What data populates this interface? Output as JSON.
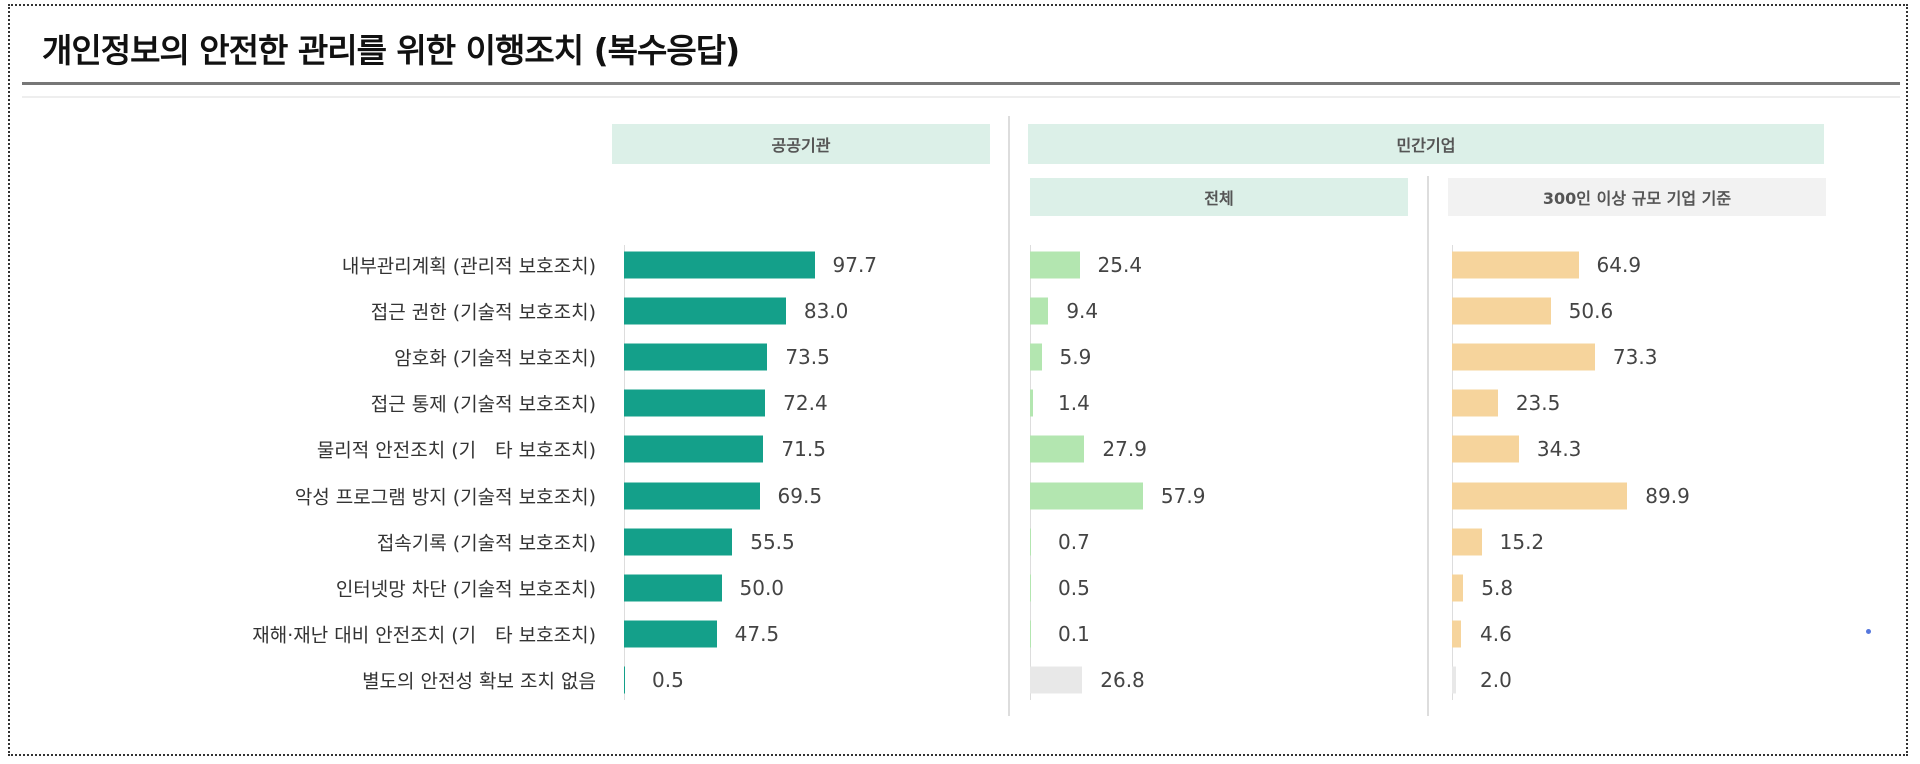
{
  "title": "개인정보의 안전한 관리를 위한 이행조치 (복수응답)",
  "headers": {
    "public": "공공기관",
    "private": "민간기업",
    "private_total": "전체",
    "private_large": "300인 이상 규모 기업 기준"
  },
  "colors": {
    "public": "#14a08a",
    "private_total": "#b3e6b0",
    "private_large": "#f6d49c",
    "none": "#e8e8e8",
    "header_bg": "#dcf0e8",
    "header_bg_alt": "#f2f2f2"
  },
  "chart_data": {
    "type": "bar",
    "orientation": "horizontal",
    "title": "개인정보의 안전한 관리를 위한 이행조치 (복수응답)",
    "categories": [
      "내부관리계획 (관리적 보호조치)",
      "접근 권한 (기술적 보호조치)",
      "암호화 (기술적 보호조치)",
      "접근 통제 (기술적 보호조치)",
      "물리적 안전조치 (기　타 보호조치)",
      "악성 프로그램 방지 (기술적 보호조치)",
      "접속기록 (기술적 보호조치)",
      "인터넷망 차단 (기술적 보호조치)",
      "재해·재난 대비 안전조치 (기　타 보호조치)",
      "별도의 안전성 확보 조치 없음"
    ],
    "series": [
      {
        "name": "공공기관",
        "values": [
          97.7,
          83.0,
          73.5,
          72.4,
          71.5,
          69.5,
          55.5,
          50.0,
          47.5,
          0.5
        ]
      },
      {
        "name": "전체",
        "values": [
          25.4,
          9.4,
          5.9,
          1.4,
          27.9,
          57.9,
          0.7,
          0.5,
          0.1,
          26.8
        ]
      },
      {
        "name": "300인 이상 규모 기업 기준",
        "values": [
          64.9,
          50.6,
          73.3,
          23.5,
          34.3,
          89.9,
          15.2,
          5.8,
          4.6,
          2.0
        ]
      }
    ],
    "value_labels": [
      [
        "97.7",
        "83.0",
        "73.5",
        "72.4",
        "71.5",
        "69.5",
        "55.5",
        "50.0",
        "47.5",
        "0.5"
      ],
      [
        "25.4",
        "9.4",
        "5.9",
        "1.4",
        "27.9",
        "57.9",
        "0.7",
        "0.5",
        "0.1",
        "26.8"
      ],
      [
        "64.9",
        "50.6",
        "73.3",
        "23.5",
        "34.3",
        "89.9",
        "15.2",
        "5.8",
        "4.6",
        "2.0"
      ]
    ],
    "unit": "%",
    "xlim": [
      0,
      100
    ],
    "grid": false,
    "legend": "none"
  }
}
